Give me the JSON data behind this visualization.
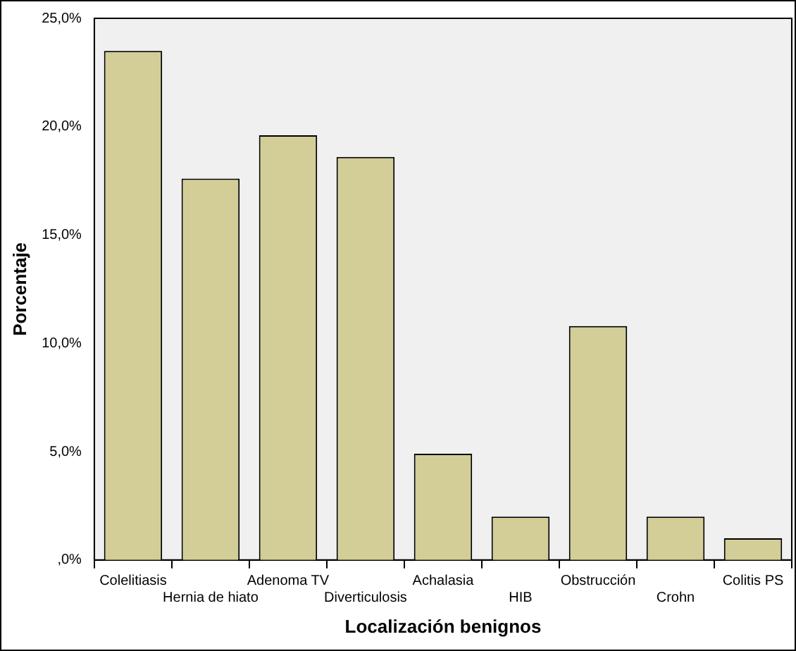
{
  "chart_data": {
    "type": "bar",
    "xlabel": "Localización benignos",
    "ylabel": "Porcentaje",
    "categories": [
      "Colelitiasis",
      "Hernia de hiato",
      "Adenoma TV",
      "Diverticulosis",
      "Achalasia",
      "HIB",
      "Obstrucción",
      "Crohn",
      "Colitis PS"
    ],
    "values": [
      23.5,
      17.6,
      19.6,
      18.6,
      4.9,
      2.0,
      10.8,
      2.0,
      1.0
    ],
    "color": "#d3ce97",
    "ylim": [
      0,
      25
    ],
    "yticks": [
      {
        "value": 0,
        "label": ",0%"
      },
      {
        "value": 5,
        "label": "5,0%"
      },
      {
        "value": 10,
        "label": "10,0%"
      },
      {
        "value": 15,
        "label": "15,0%"
      },
      {
        "value": 20,
        "label": "20,0%"
      },
      {
        "value": 25,
        "label": "25,0%"
      }
    ],
    "grid": false,
    "legend": false
  }
}
